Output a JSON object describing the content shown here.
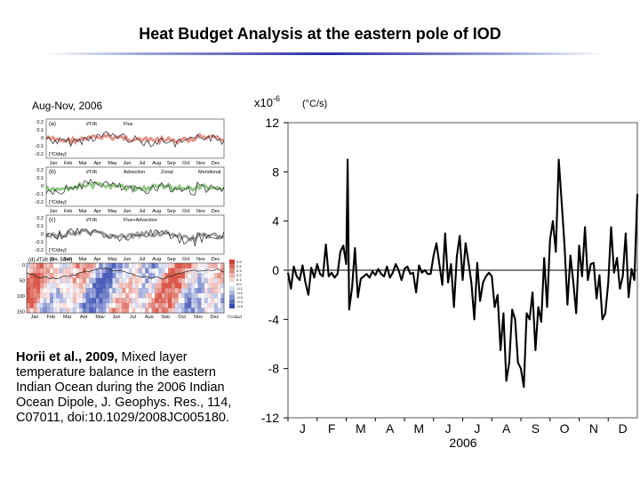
{
  "slide": {
    "title": "Heat Budget Analysis at the eastern pole of IOD",
    "panel_caption": "Aug-Nov, 2006"
  },
  "citation": {
    "authors": "Horii et al., 2009,",
    "text": "Mixed layer temperature balance in the eastern Indian Ocean during the 2006 Indian Ocean Dipole, J. Geophys. Res., 114,  C07011, doi:10.1029/2008JC005180."
  },
  "thumbnail": {
    "panels": [
      {
        "tag": "(a)",
        "legend": [
          "∂T/∂t",
          "Flux"
        ],
        "ylabel": "[°C/day]",
        "yticks": [
          "0.2",
          "0.1",
          "0",
          "-0.1",
          "-0.2"
        ]
      },
      {
        "tag": "(b)",
        "legend": [
          "∂T/∂t",
          "Advection",
          "Zonal",
          "Meridional"
        ],
        "ylabel": "[°C/day]",
        "yticks": [
          "0.2",
          "0.1",
          "0",
          "-0.1",
          "-0.2"
        ]
      },
      {
        "tag": "(c)",
        "legend": [
          "∂T/∂t",
          "Flux+Advection"
        ],
        "ylabel": "[°C/day]",
        "yticks": [
          "0.2",
          "0.1",
          "0",
          "-0.1",
          "-0.2"
        ]
      }
    ],
    "depth_panel": {
      "tag": "(d)",
      "label": "∂T/∂t  (0 – 50m)",
      "yticks": [
        "0",
        "50",
        "100",
        "150"
      ],
      "unit": "[°C/day]",
      "colorbar_ticks": [
        "0.5",
        "0.4",
        "0.3",
        "0.2",
        "0.1",
        "0.0",
        "-0.1",
        "-0.2",
        "-0.3",
        "-0.4",
        "-0.5"
      ]
    },
    "months": [
      "Jan",
      "Feb",
      "Mar",
      "Apr",
      "May",
      "Jun",
      "Jul",
      "Aug",
      "Sep",
      "Oct",
      "Nov",
      "Dec"
    ]
  },
  "colors": {
    "flux": "#d03a2a",
    "advection": "#3e9a2a",
    "sum": "#555555",
    "warm": "#d44030",
    "cold": "#3048b0",
    "rule": "#2a2fa8"
  },
  "chart_data": {
    "type": "line",
    "title": "",
    "xlabel": "2006",
    "ylabel": "(°C/s)",
    "yscale_label": "x10",
    "yscale_exponent": "-6",
    "ylim": [
      -12,
      12
    ],
    "yticks": [
      12,
      8,
      4,
      0,
      -4,
      -8,
      -12
    ],
    "ytick_labels": [
      "12",
      "8",
      "4",
      "0",
      "-4",
      "-8",
      "-12"
    ],
    "xlim": [
      0,
      12
    ],
    "month_labels": [
      "J",
      "F",
      "M",
      "A",
      "M",
      "J",
      "J",
      "A",
      "S",
      "O",
      "N",
      "D"
    ],
    "series": [
      {
        "name": "dT/dt",
        "x": [
          0.0,
          0.1,
          0.2,
          0.3,
          0.4,
          0.5,
          0.6,
          0.7,
          0.8,
          0.9,
          1.0,
          1.1,
          1.2,
          1.3,
          1.4,
          1.5,
          1.6,
          1.7,
          1.8,
          1.9,
          2.0,
          2.05,
          2.1,
          2.2,
          2.3,
          2.4,
          2.5,
          2.6,
          2.7,
          2.8,
          2.9,
          3.0,
          3.1,
          3.2,
          3.3,
          3.4,
          3.5,
          3.6,
          3.7,
          3.8,
          3.9,
          4.0,
          4.1,
          4.2,
          4.3,
          4.4,
          4.5,
          4.6,
          4.7,
          4.8,
          4.9,
          5.0,
          5.1,
          5.2,
          5.3,
          5.4,
          5.5,
          5.6,
          5.7,
          5.8,
          5.9,
          6.0,
          6.1,
          6.2,
          6.3,
          6.4,
          6.5,
          6.6,
          6.7,
          6.8,
          6.9,
          7.0,
          7.1,
          7.2,
          7.3,
          7.4,
          7.5,
          7.6,
          7.7,
          7.8,
          7.9,
          8.0,
          8.1,
          8.2,
          8.3,
          8.4,
          8.5,
          8.6,
          8.7,
          8.8,
          8.9,
          9.0,
          9.1,
          9.2,
          9.3,
          9.4,
          9.5,
          9.6,
          9.7,
          9.8,
          9.9,
          10.0,
          10.1,
          10.2,
          10.3,
          10.4,
          10.5,
          10.6,
          10.7,
          10.8,
          10.9,
          11.0,
          11.1,
          11.2,
          11.3,
          11.4,
          11.5,
          11.6,
          11.7,
          11.8,
          11.9,
          12.0
        ],
        "values": [
          -0.2,
          -1.5,
          0.3,
          -0.5,
          -0.8,
          0.4,
          -1.0,
          -2.0,
          0.2,
          -0.6,
          0.5,
          -0.3,
          -0.5,
          2.1,
          -0.5,
          -0.2,
          -0.6,
          -0.3,
          1.5,
          2.0,
          0.5,
          9.0,
          -3.2,
          -1.4,
          1.8,
          -2.2,
          -0.7,
          -0.5,
          -0.3,
          -0.6,
          -0.1,
          -0.4,
          0.1,
          -0.3,
          -0.5,
          0.3,
          -0.6,
          -0.2,
          0.5,
          0.0,
          -0.8,
          0.1,
          0.3,
          -0.3,
          -0.2,
          -1.8,
          0.4,
          -0.2,
          0.0,
          -0.3,
          -0.3,
          1.2,
          2.2,
          0.5,
          -1.2,
          3.0,
          -1.0,
          0.5,
          -3.0,
          1.1,
          2.8,
          -0.8,
          2.2,
          0.6,
          -1.0,
          -4.0,
          0.6,
          -2.5,
          -1.0,
          -0.5,
          -0.2,
          -0.5,
          -3.0,
          -2.0,
          -6.5,
          -3.5,
          -9.0,
          -7.5,
          -3.2,
          -4.0,
          -7.5,
          -8.0,
          -9.5,
          -3.5,
          -4.0,
          -1.8,
          -6.5,
          -3.0,
          -4.2,
          1.0,
          -3.0,
          2.5,
          4.0,
          1.5,
          9.0,
          5.5,
          2.0,
          -2.8,
          1.2,
          -1.0,
          -3.5,
          2.0,
          -0.5,
          3.5,
          -0.8,
          0.5,
          0.6,
          -2.3,
          -0.4,
          -4.0,
          -3.5,
          -1.0,
          3.5,
          -0.2,
          1.0,
          -1.5,
          -0.5,
          3.0,
          -2.2,
          0.1,
          -0.8,
          6.2
        ]
      }
    ]
  }
}
